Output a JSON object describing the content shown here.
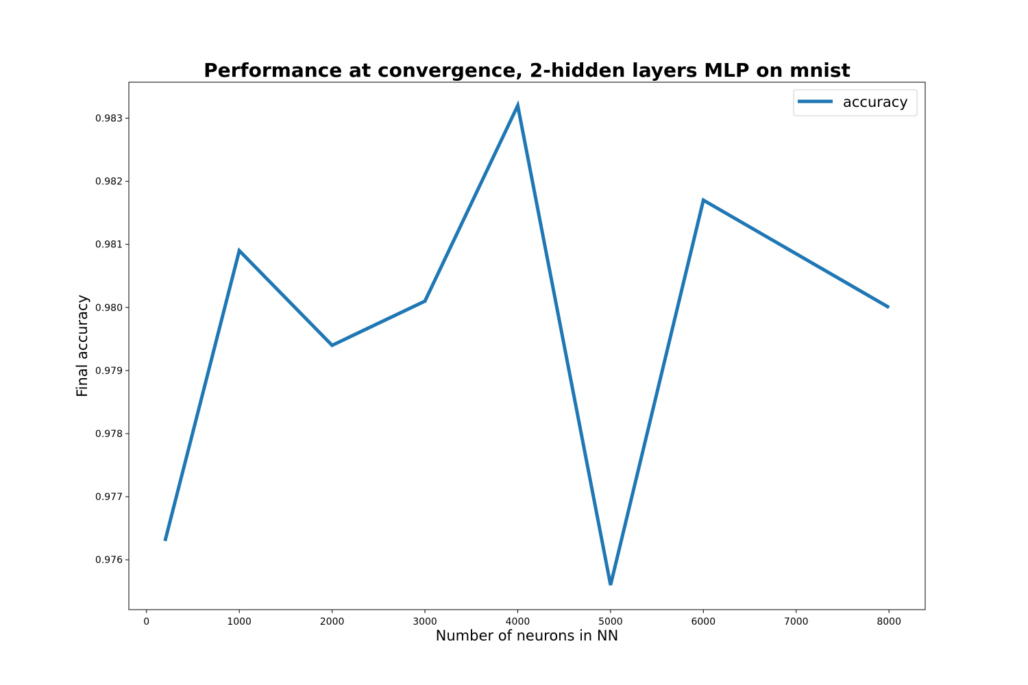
{
  "chart_data": {
    "type": "line",
    "title": "Performance at convergence, 2-hidden layers MLP on mnist",
    "xlabel": "Number of neurons in NN",
    "ylabel": "Final accuracy",
    "xlim": [
      -190,
      8390
    ],
    "ylim": [
      0.97521,
      0.98357
    ],
    "xticks": [
      0,
      1000,
      2000,
      3000,
      4000,
      5000,
      6000,
      7000,
      8000
    ],
    "xtick_labels": [
      "0",
      "1000",
      "2000",
      "3000",
      "4000",
      "5000",
      "6000",
      "7000",
      "8000"
    ],
    "yticks": [
      0.976,
      0.977,
      0.978,
      0.979,
      0.98,
      0.981,
      0.982,
      0.983
    ],
    "ytick_labels": [
      "0.976",
      "0.977",
      "0.978",
      "0.979",
      "0.980",
      "0.981",
      "0.982",
      "0.983"
    ],
    "grid": false,
    "legend_position": "top-right",
    "series": [
      {
        "name": "accuracy",
        "color": "#1f77b4",
        "x": [
          200,
          1000,
          2000,
          3000,
          4000,
          5000,
          6000,
          8000
        ],
        "y": [
          0.9763,
          0.9809,
          0.9794,
          0.9801,
          0.9832,
          0.9756,
          0.9817,
          0.98
        ]
      }
    ]
  }
}
